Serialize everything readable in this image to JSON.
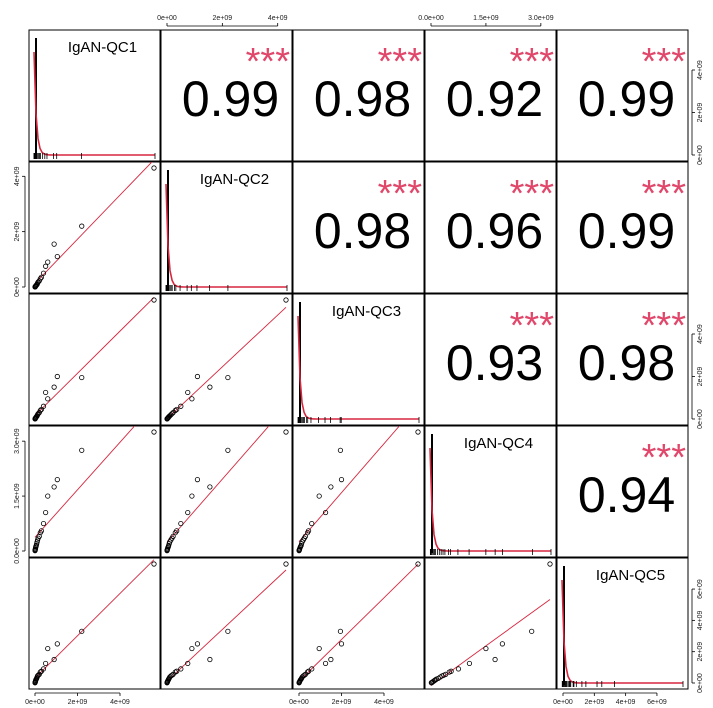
{
  "chart_data": {
    "type": "scatter-matrix",
    "variables": [
      "IgAN-QC1",
      "IgAN-QC2",
      "IgAN-QC3",
      "IgAN-QC4",
      "IgAN-QC5"
    ],
    "correlations": [
      {
        "row": 0,
        "col": 1,
        "value": "0.99",
        "stars": "***"
      },
      {
        "row": 0,
        "col": 2,
        "value": "0.98",
        "stars": "***"
      },
      {
        "row": 0,
        "col": 3,
        "value": "0.92",
        "stars": "***"
      },
      {
        "row": 0,
        "col": 4,
        "value": "0.99",
        "stars": "***"
      },
      {
        "row": 1,
        "col": 2,
        "value": "0.98",
        "stars": "***"
      },
      {
        "row": 1,
        "col": 3,
        "value": "0.96",
        "stars": "***"
      },
      {
        "row": 1,
        "col": 4,
        "value": "0.99",
        "stars": "***"
      },
      {
        "row": 2,
        "col": 3,
        "value": "0.93",
        "stars": "***"
      },
      {
        "row": 2,
        "col": 4,
        "value": "0.98",
        "stars": "***"
      },
      {
        "row": 3,
        "col": 4,
        "value": "0.94",
        "stars": "***"
      }
    ],
    "ranges": [
      [
        0,
        5600000000.0
      ],
      [
        0,
        4300000000.0
      ],
      [
        0,
        5600000000.0
      ],
      [
        0,
        3250000000.0
      ],
      [
        0,
        7600000000.0
      ]
    ],
    "ticks": {
      "IgAN-QC1": [
        {
          "v": 0,
          "label": "0e+00"
        },
        {
          "v": 2000000000.0,
          "label": "2e+09"
        },
        {
          "v": 4000000000.0,
          "label": "4e+09"
        }
      ],
      "IgAN-QC2": [
        {
          "v": 0,
          "label": "0e+00"
        },
        {
          "v": 2000000000.0,
          "label": "2e+09"
        },
        {
          "v": 4000000000.0,
          "label": "4e+09"
        }
      ],
      "IgAN-QC3": [
        {
          "v": 0,
          "label": "0e+00"
        },
        {
          "v": 2000000000.0,
          "label": "2e+09"
        },
        {
          "v": 4000000000.0,
          "label": "4e+09"
        }
      ],
      "IgAN-QC4": [
        {
          "v": 0,
          "label": "0.0e+00"
        },
        {
          "v": 1500000000.0,
          "label": "1.5e+09"
        },
        {
          "v": 3000000000.0,
          "label": "3.0e+09"
        }
      ],
      "IgAN-QC5": [
        {
          "v": 0,
          "label": "0e+00"
        },
        {
          "v": 2000000000.0,
          "label": "2e+09"
        },
        {
          "v": 4000000000.0,
          "label": "4e+09"
        },
        {
          "v": 6000000000.0,
          "label": "6e+09"
        }
      ]
    },
    "observations": [
      [
        5600000000.0,
        4300000000.0,
        5600000000.0,
        3250000000.0,
        7600000000.0
      ],
      [
        2200000000.0,
        2200000000.0,
        1950000000.0,
        2750000000.0,
        3300000000.0
      ],
      [
        1050000000.0,
        1100000000.0,
        2000000000.0,
        1950000000.0,
        2500000000.0
      ],
      [
        900000000.0,
        1550000000.0,
        1500000000.0,
        1750000000.0,
        1500000000.0
      ],
      [
        600000000.0,
        900000000.0,
        950000000.0,
        1500000000.0,
        2200000000.0
      ],
      [
        500000000.0,
        750000000.0,
        1250000000.0,
        1050000000.0,
        1250000000.0
      ],
      [
        400000000.0,
        500000000.0,
        600000000.0,
        750000000.0,
        900000000.0
      ],
      [
        300000000.0,
        350000000.0,
        450000000.0,
        550000000.0,
        750000000.0
      ],
      [
        250000000.0,
        300000000.0,
        400000000.0,
        500000000.0,
        700000000.0
      ],
      [
        200000000.0,
        220000000.0,
        300000000.0,
        400000000.0,
        550000000.0
      ],
      [
        150000000.0,
        180000000.0,
        250000000.0,
        350000000.0,
        500000000.0
      ],
      [
        120000000.0,
        140000000.0,
        200000000.0,
        300000000.0,
        450000000.0
      ],
      [
        100000000.0,
        100000000.0,
        150000000.0,
        250000000.0,
        380000000.0
      ],
      [
        80000000.0,
        80000000.0,
        120000000.0,
        200000000.0,
        300000000.0
      ],
      [
        60000000.0,
        60000000.0,
        100000000.0,
        150000000.0,
        250000000.0
      ],
      [
        40000000.0,
        50000000.0,
        70000000.0,
        120000000.0,
        200000000.0
      ],
      [
        30000000.0,
        30000000.0,
        50000000.0,
        90000000.0,
        150000000.0
      ],
      [
        20000000.0,
        20000000.0,
        30000000.0,
        60000000.0,
        100000000.0
      ],
      [
        10000000.0,
        10000000.0,
        20000000.0,
        40000000.0,
        60000000.0
      ],
      [
        5000000.0,
        5000000.0,
        10000000.0,
        20000000.0,
        30000000.0
      ],
      [
        2000000.0,
        2000000.0,
        4000000.0,
        10000000.0,
        15000000.0
      ]
    ],
    "colors": {
      "points": "#000000",
      "fit_line": "#d6273f",
      "density": "#d6273f",
      "stars": "#e0476b",
      "histogram": "#000000"
    }
  }
}
